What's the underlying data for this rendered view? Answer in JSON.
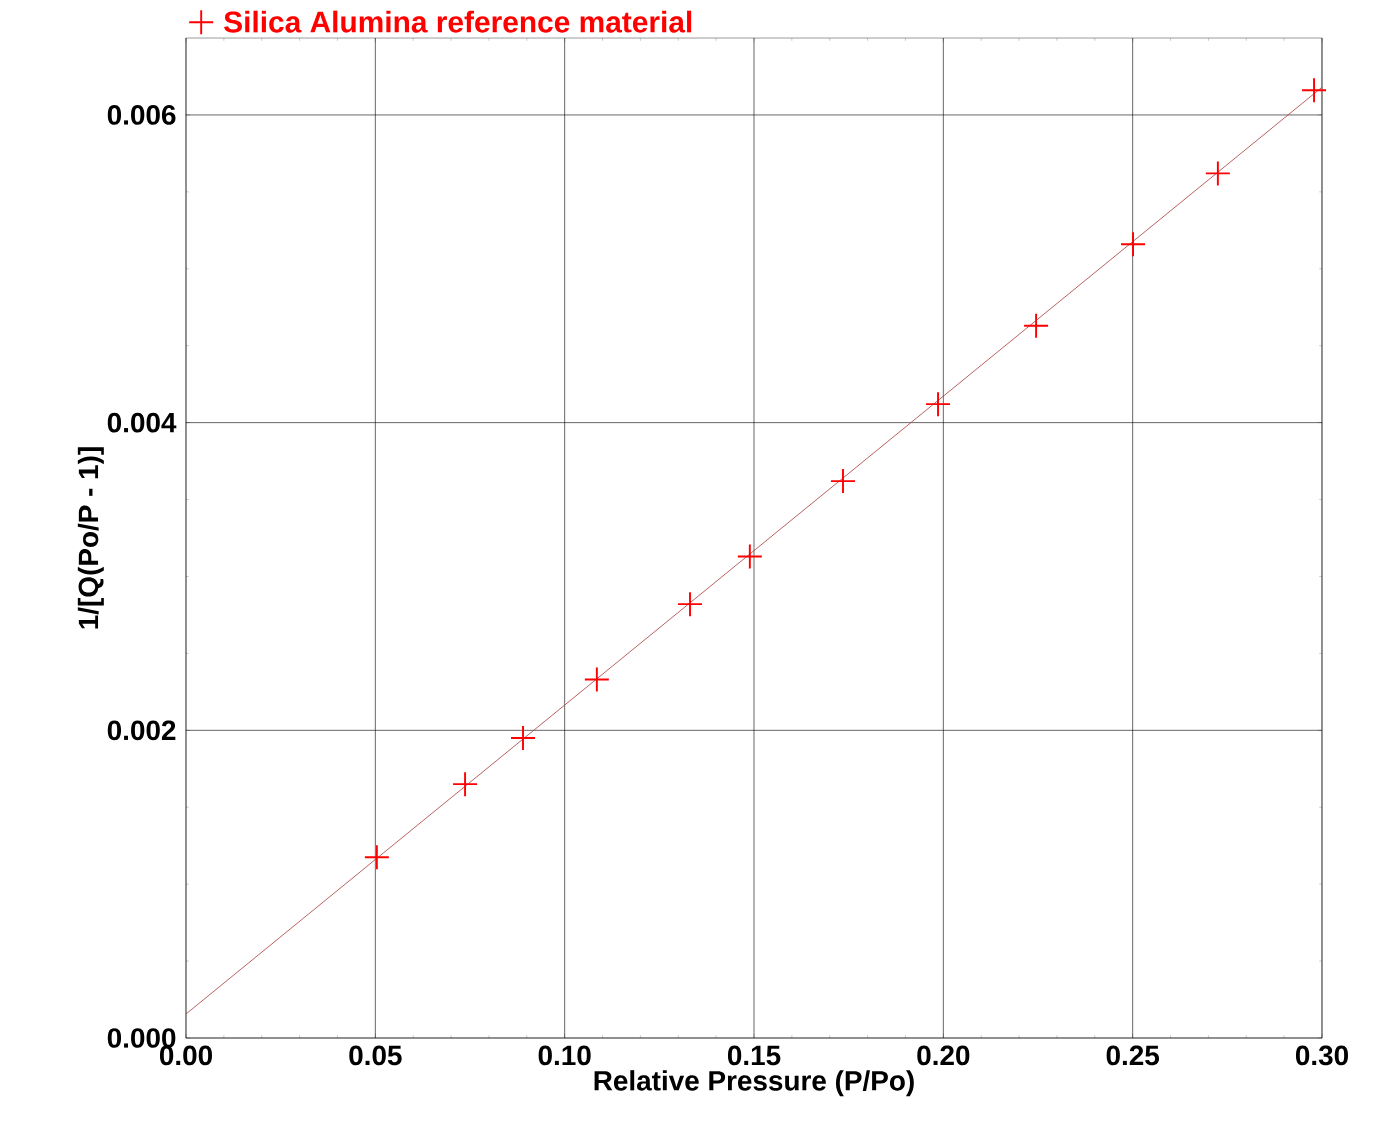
{
  "chart_data": {
    "type": "scatter",
    "xlabel": "Relative Pressure (P/Po)",
    "ylabel": "1/[Q(Po/P - 1)]",
    "xlim": [
      0,
      0.3
    ],
    "ylim": [
      0,
      0.0065
    ],
    "xticks": [
      {
        "value": 0,
        "label": "0.00"
      },
      {
        "value": 0.05,
        "label": "0.05"
      },
      {
        "value": 0.1,
        "label": "0.10"
      },
      {
        "value": 0.15,
        "label": "0.15"
      },
      {
        "value": 0.2,
        "label": "0.20"
      },
      {
        "value": 0.25,
        "label": "0.25"
      },
      {
        "value": 0.3,
        "label": "0.30"
      }
    ],
    "yticks": [
      {
        "value": 0,
        "label": "0.000"
      },
      {
        "value": 0.002,
        "label": "0.002"
      },
      {
        "value": 0.004,
        "label": "0.004"
      },
      {
        "value": 0.006,
        "label": "0.006"
      }
    ],
    "grid": true,
    "legend": "top left",
    "series": [
      {
        "name": "Silica Alumina reference material",
        "color": "#ff0000",
        "marker": "cross",
        "x": [
          0.0504,
          0.0737,
          0.089,
          0.1085,
          0.1331,
          0.1489,
          0.1735,
          0.1986,
          0.2245,
          0.2501,
          0.2725,
          0.2979
        ],
        "values": [
          0.001175,
          0.00165,
          0.00195,
          0.00233,
          0.00282,
          0.00313,
          0.00362,
          0.00412,
          0.00463,
          0.00516,
          0.00562,
          0.00616
        ]
      },
      {
        "type": "line",
        "color": "#a83a3a",
        "x": [
          0,
          0.3
        ],
        "values": [
          0.000156,
          0.00618
        ]
      }
    ]
  }
}
